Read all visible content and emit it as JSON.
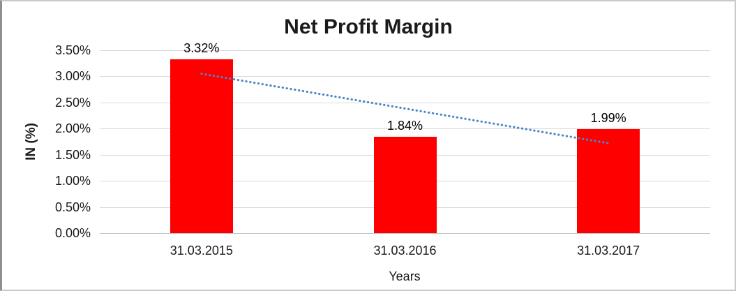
{
  "chart_data": {
    "type": "bar",
    "title": "Net Profit Margin",
    "xlabel": "Years",
    "ylabel": "IN (%)",
    "categories": [
      "31.03.2015",
      "31.03.2016",
      "31.03.2017"
    ],
    "series": [
      {
        "name": "Net Profit Margin",
        "values": [
          3.32,
          1.84,
          1.99
        ]
      }
    ],
    "data_labels": [
      "3.32%",
      "1.84%",
      "1.99%"
    ],
    "y_ticks": [
      "3.50%",
      "3.00%",
      "2.50%",
      "2.00%",
      "1.50%",
      "1.00%",
      "0.50%",
      "0.00%"
    ],
    "ylim": [
      0,
      3.5
    ],
    "grid": true,
    "legend": false,
    "bar_color": "#ff0000",
    "gridline_color": "#d9d9d9",
    "trendline": {
      "type": "linear",
      "style": "dotted",
      "color": "#4a86c8",
      "start_value": 3.05,
      "end_value": 1.72
    }
  }
}
